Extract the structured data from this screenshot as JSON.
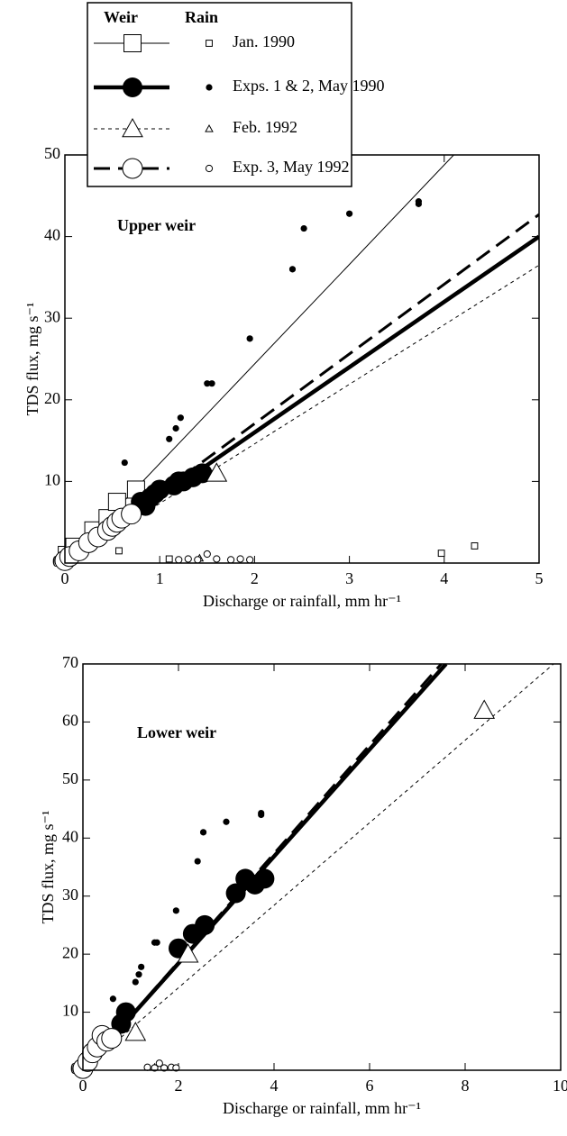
{
  "chart_data": [
    {
      "type": "scatter",
      "title": "Upper weir",
      "xlabel": "Discharge or rainfall, mm hr⁻¹",
      "ylabel": "TDS flux, mg s⁻¹",
      "legend_headers": [
        "Weir",
        "Rain"
      ],
      "xlim": [
        0,
        5
      ],
      "ylim": [
        0,
        50
      ],
      "xticks": [
        0,
        1,
        2,
        3,
        4,
        5
      ],
      "yticks": [
        0,
        10,
        20,
        30,
        40,
        50
      ],
      "series": [
        {
          "name": "Jan. 1990",
          "marker": "square",
          "line": "thin",
          "weir": {
            "x": [
              0.02,
              0.1,
              0.3,
              0.45,
              0.55,
              0.75
            ],
            "y": [
              1,
              2,
              4,
              5.5,
              7.5,
              9
            ]
          },
          "fit": {
            "x": [
              0,
              4.1
            ],
            "y": [
              0,
              50
            ]
          },
          "rain": {
            "x": [
              0.05,
              0.57,
              1.1,
              3.97,
              4.32
            ],
            "y": [
              0.5,
              1.5,
              0.5,
              1.2,
              2.1
            ]
          }
        },
        {
          "name": "Exps. 1 & 2, May 1990",
          "marker": "circle-filled",
          "line": "thick",
          "weir": {
            "x": [
              0.8,
              0.85,
              0.9,
              0.95,
              1.0,
              1.15,
              1.2,
              1.25,
              1.35,
              1.45
            ],
            "y": [
              7.5,
              7,
              8,
              8.5,
              9,
              9.5,
              10,
              10,
              10.5,
              11
            ]
          },
          "fit": {
            "x": [
              0,
              5
            ],
            "y": [
              0,
              40
            ]
          },
          "rain": {
            "x": [
              0.63,
              1.1,
              1.17,
              1.22,
              1.5,
              1.55,
              1.95,
              2.4,
              2.52,
              3.0,
              3.73,
              3.73
            ],
            "y": [
              12.3,
              15.2,
              16.5,
              17.8,
              22,
              22,
              27.5,
              36,
              41,
              42.8,
              44,
              44.3
            ]
          }
        },
        {
          "name": "Feb. 1992",
          "marker": "triangle",
          "line": "dashed-thin",
          "weir": {
            "x": [
              1.6
            ],
            "y": [
              11
            ]
          },
          "fit": {
            "x": [
              0,
              5
            ],
            "y": [
              0,
              36.5
            ]
          },
          "rain": {
            "x": [
              1.42
            ],
            "y": [
              0.6
            ]
          }
        },
        {
          "name": "Exp. 3, May 1992",
          "marker": "circle-open",
          "line": "dashed-long",
          "weir": {
            "x": [
              0,
              0.05,
              0.15,
              0.25,
              0.35,
              0.45,
              0.5,
              0.55,
              0.6,
              0.7
            ],
            "y": [
              0.3,
              0.8,
              1.5,
              2.5,
              3.2,
              4,
              4.5,
              5,
              5.5,
              6
            ]
          },
          "fit": {
            "x": [
              0,
              5
            ],
            "y": [
              0,
              42.7
            ]
          },
          "rain": {
            "x": [
              1.2,
              1.3,
              1.4,
              1.5,
              1.6,
              1.75,
              1.85,
              1.95
            ],
            "y": [
              0.4,
              0.5,
              0.4,
              1.1,
              0.5,
              0.4,
              0.5,
              0.4
            ]
          }
        }
      ]
    },
    {
      "type": "scatter",
      "title": "Lower weir",
      "xlabel": "Discharge or rainfall, mm hr⁻¹",
      "ylabel": "TDS flux, mg s⁻¹",
      "xlim": [
        0,
        10
      ],
      "ylim": [
        0,
        70
      ],
      "xticks": [
        0,
        2,
        4,
        6,
        8,
        10
      ],
      "yticks": [
        0,
        10,
        20,
        30,
        40,
        50,
        60,
        70
      ],
      "series": [
        {
          "marker": "circle-filled",
          "line": "thick",
          "weir": {
            "x": [
              0.8,
              0.9,
              2.0,
              2.3,
              2.55,
              3.2,
              3.4,
              3.6,
              3.8
            ],
            "y": [
              8,
              10,
              21,
              23.5,
              25,
              30.5,
              33,
              32,
              33
            ]
          },
          "fit": {
            "x": [
              0,
              7.6
            ],
            "y": [
              0,
              70
            ]
          },
          "rain": {
            "x": [
              0.63,
              1.1,
              1.17,
              1.22,
              1.5,
              1.55,
              1.95,
              2.4,
              2.52,
              3.0,
              3.73,
              3.73
            ],
            "y": [
              12.3,
              15.2,
              16.5,
              17.8,
              22,
              22,
              27.5,
              36,
              41,
              42.8,
              44,
              44.3
            ]
          }
        },
        {
          "marker": "triangle",
          "line": "dashed-thin",
          "weir": {
            "x": [
              1.1,
              2.2,
              8.4
            ],
            "y": [
              6.5,
              20,
              62
            ]
          },
          "fit": {
            "x": [
              0,
              9.85
            ],
            "y": [
              0,
              70
            ]
          },
          "rain": {
            "x": [
              1.5
            ],
            "y": [
              0.5
            ]
          }
        },
        {
          "marker": "circle-open",
          "line": "dashed-long",
          "weir": {
            "x": [
              0,
              0.1,
              0.2,
              0.3,
              0.4,
              0.5,
              0.6
            ],
            "y": [
              0.3,
              1.5,
              3,
              4,
              6,
              5,
              5.5
            ]
          },
          "fit": {
            "x": [
              0,
              7.5
            ],
            "y": [
              0,
              70
            ]
          },
          "rain": {
            "x": [
              1.35,
              1.5,
              1.6,
              1.7,
              1.85,
              1.95
            ],
            "y": [
              0.5,
              0.4,
              1.2,
              0.4,
              0.5,
              0.4
            ]
          }
        }
      ]
    }
  ]
}
